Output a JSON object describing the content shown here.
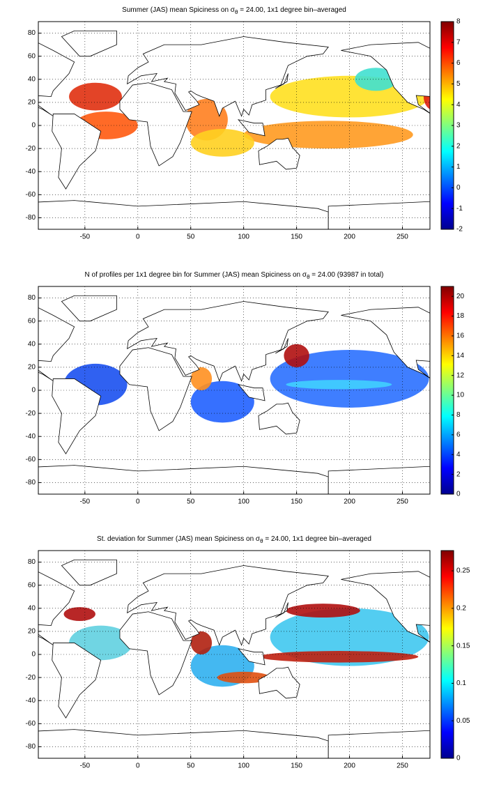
{
  "chart_data": [
    {
      "type": "map",
      "title_before": "Summer (JAS) mean Spiciness on σ",
      "title_sub": "θ",
      "title_after": " = 24.00, 1x1 degree bin–averaged",
      "xlim": [
        -94,
        276
      ],
      "xticks": [
        -50,
        0,
        50,
        100,
        150,
        200,
        250
      ],
      "ylim": [
        -90,
        90
      ],
      "yticks": [
        -80,
        -60,
        -40,
        -20,
        0,
        20,
        40,
        60,
        80
      ],
      "grid": true,
      "colormap": "jet",
      "clim": [
        -2,
        8
      ],
      "cticks": [
        -2,
        -1,
        0,
        1,
        2,
        3,
        4,
        5,
        6,
        7,
        8
      ]
    },
    {
      "type": "map",
      "title_before": "N of profiles per 1x1 degree bin for Summer (JAS) mean Spiciness on σ",
      "title_sub": "θ",
      "title_after": " = 24.00 (93987 in total)",
      "xlim": [
        -94,
        276
      ],
      "xticks": [
        -50,
        0,
        50,
        100,
        150,
        200,
        250
      ],
      "ylim": [
        -90,
        90
      ],
      "yticks": [
        -80,
        -60,
        -40,
        -20,
        0,
        20,
        40,
        60,
        80
      ],
      "grid": true,
      "colormap": "jet",
      "clim": [
        0,
        21
      ],
      "cticks": [
        0,
        2,
        4,
        6,
        8,
        10,
        12,
        14,
        16,
        18,
        20
      ]
    },
    {
      "type": "map",
      "title_before": "St. deviation for Summer (JAS) mean Spiciness on σ",
      "title_sub": "θ",
      "title_after": " = 24.00, 1x1 degree bin–averaged",
      "xlim": [
        -94,
        276
      ],
      "xticks": [
        -50,
        0,
        50,
        100,
        150,
        200,
        250
      ],
      "ylim": [
        -90,
        90
      ],
      "yticks": [
        -80,
        -60,
        -40,
        -20,
        0,
        20,
        40,
        60,
        80
      ],
      "grid": true,
      "colormap": "jet",
      "clim": [
        0,
        0.277
      ],
      "cticks": [
        0,
        0.05,
        0.1,
        0.15,
        0.2,
        0.25
      ]
    }
  ]
}
